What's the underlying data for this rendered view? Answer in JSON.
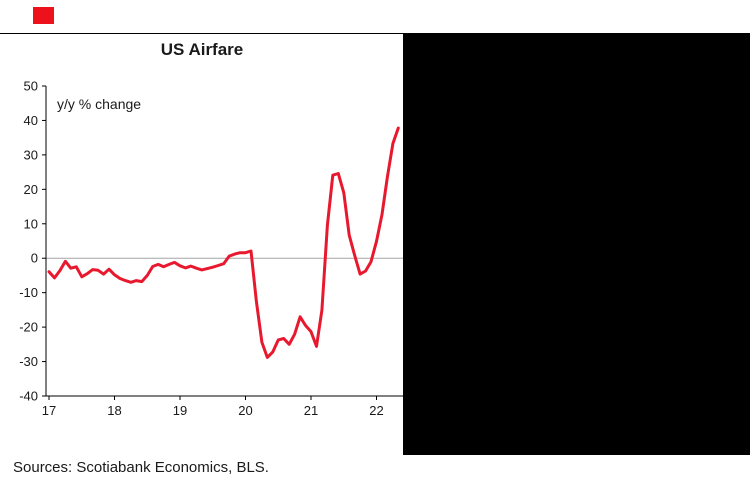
{
  "header": {
    "logo_color": "#ec111a"
  },
  "chart_data": {
    "type": "line",
    "title": "US Airfare",
    "annotation": "y/y % change",
    "xlabel": "",
    "ylabel": "y/y % change",
    "ylim": [
      -40,
      50
    ],
    "yticks": [
      50,
      40,
      30,
      20,
      10,
      0,
      -10,
      -20,
      -30,
      -40
    ],
    "xticks": [
      {
        "year": 2017,
        "label": "17"
      },
      {
        "year": 2018,
        "label": "18"
      },
      {
        "year": 2019,
        "label": "19"
      },
      {
        "year": 2020,
        "label": "20"
      },
      {
        "year": 2021,
        "label": "21"
      },
      {
        "year": 2022,
        "label": "22"
      }
    ],
    "grid": "zero-line-only",
    "legend": "none",
    "series": [
      {
        "name": "US airfare y/y % change",
        "color": "#e8192e",
        "start_year": 2017,
        "frequency": "monthly",
        "values": [
          -3.9,
          -5.7,
          -3.6,
          -0.9,
          -2.9,
          -2.5,
          -5.4,
          -4.5,
          -3.3,
          -3.5,
          -4.6,
          -3.2,
          -4.8,
          -5.9,
          -6.5,
          -7.0,
          -6.5,
          -6.8,
          -5.0,
          -2.4,
          -1.8,
          -2.5,
          -1.8,
          -1.2,
          -2.2,
          -2.8,
          -2.3,
          -2.9,
          -3.4,
          -3.0,
          -2.6,
          -2.1,
          -1.6,
          0.6,
          1.2,
          1.6,
          1.6,
          2.1,
          -12.6,
          -24.4,
          -28.8,
          -27.2,
          -23.7,
          -23.3,
          -25.0,
          -22.1,
          -17.0,
          -19.5,
          -21.3,
          -25.6,
          -15.1,
          9.6,
          24.1,
          24.6,
          19.0,
          6.7,
          0.8,
          -4.6,
          -3.7,
          -1.0,
          4.9,
          12.7,
          23.6,
          33.3,
          37.8
        ]
      }
    ]
  },
  "footer": {
    "sources": "Sources: Scotiabank Economics, BLS."
  }
}
